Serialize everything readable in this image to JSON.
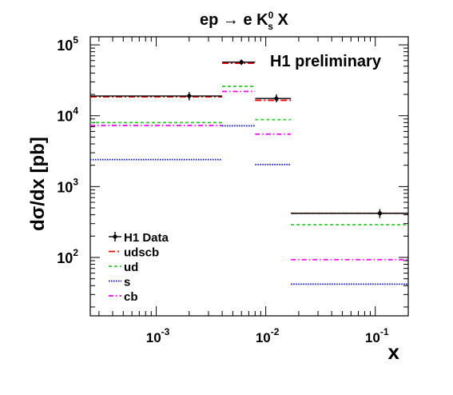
{
  "chart_data": {
    "type": "line",
    "title": {
      "main": "ep → e K",
      "superscript": "0",
      "subscript": "s",
      "tail": " X"
    },
    "annotation": "H1 preliminary",
    "xlabel": "x",
    "ylabel": "dσ/dx [pb]",
    "xscale": "log",
    "yscale": "log",
    "xlim": [
      0.00025,
      0.2
    ],
    "ylim": [
      15,
      130000
    ],
    "x_ticks": [
      {
        "value": 0.001,
        "base": "10",
        "exp": "-3"
      },
      {
        "value": 0.01,
        "base": "10",
        "exp": "-2"
      },
      {
        "value": 0.1,
        "base": "10",
        "exp": "-1"
      }
    ],
    "y_ticks": [
      {
        "value": 100,
        "base": "10",
        "exp": "2"
      },
      {
        "value": 1000,
        "base": "10",
        "exp": "3"
      },
      {
        "value": 10000,
        "base": "10",
        "exp": "4"
      },
      {
        "value": 100000,
        "base": "10",
        "exp": "5"
      }
    ],
    "bins": [
      [
        0.00025,
        0.004
      ],
      [
        0.004,
        0.008
      ],
      [
        0.008,
        0.017
      ],
      [
        0.017,
        0.2
      ]
    ],
    "data_points": [
      {
        "x": 0.002,
        "y": 19000,
        "yerr_low": 2500,
        "yerr_high": 2500
      },
      {
        "x": 0.006,
        "y": 57000,
        "yerr_low": 5000,
        "yerr_high": 5000
      },
      {
        "x": 0.0125,
        "y": 17500,
        "yerr_low": 2000,
        "yerr_high": 2500
      },
      {
        "x": 0.11,
        "y": 420,
        "yerr_low": 60,
        "yerr_high": 60
      }
    ],
    "series": [
      {
        "name": "udscb",
        "color": "#ff0000",
        "dash": "8,3,2,3",
        "values": [
          18500,
          55000,
          16500,
          420
        ]
      },
      {
        "name": "ud",
        "color": "#33cc33",
        "dash": "4,3",
        "values": [
          8000,
          26000,
          8800,
          290
        ]
      },
      {
        "name": "s",
        "color": "#0000ff",
        "dash": "1.5,1.5",
        "values": [
          2400,
          7200,
          2050,
          42
        ]
      },
      {
        "name": "cb",
        "color": "#ff00ff",
        "dash": "6,3,1.5,3",
        "values": [
          7300,
          22000,
          5500,
          93
        ]
      }
    ],
    "legend": {
      "placement": "bottom-left",
      "data_label": "H1 Data"
    }
  }
}
